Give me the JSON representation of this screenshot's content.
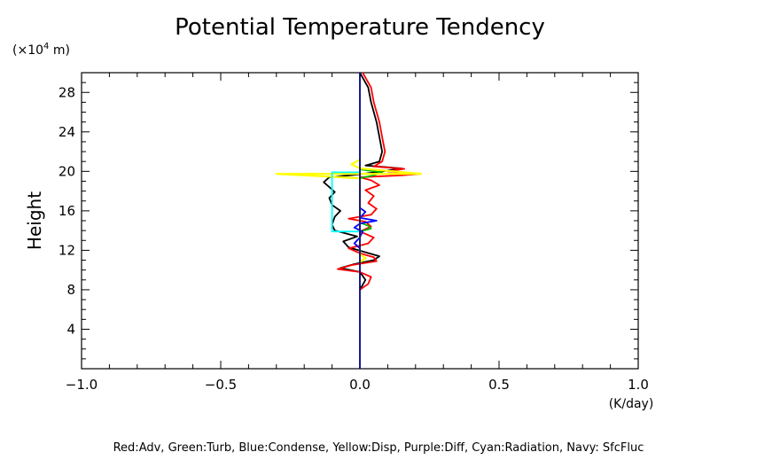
{
  "chart_data": {
    "type": "line",
    "title": "Potential Temperature Tendency",
    "xlabel": "(K/day)",
    "ylabel": "Height",
    "yunit_base": "(×10",
    "yunit_exp": "4",
    "yunit_rest": " m)",
    "xlim": [
      -1.0,
      1.0
    ],
    "ylim": [
      0,
      30
    ],
    "xticks": [
      -1.0,
      -0.5,
      0.0,
      0.5,
      1.0
    ],
    "xtick_labels": [
      "−1.0",
      "−0.5",
      "0.0",
      "0.5",
      "1.0"
    ],
    "yticks": [
      4,
      8,
      12,
      16,
      20,
      24,
      28
    ],
    "ytick_labels": [
      "4",
      "8",
      "12",
      "16",
      "20",
      "24",
      "28"
    ],
    "legend_text": "Red:Adv, Green:Turb, Blue:Condense, Yellow:Disp, Purple:Diff, Cyan:Radiation, Navy: SfcFluc",
    "legend_placement": "bottom",
    "grid": false,
    "series": [
      {
        "color": "#000000",
        "points": [
          [
            0.0,
            8.0
          ],
          [
            0.02,
            9.0
          ],
          [
            0.0,
            9.8
          ],
          [
            -0.07,
            10.2
          ],
          [
            -0.02,
            10.6
          ],
          [
            0.05,
            11.0
          ],
          [
            0.07,
            11.4
          ],
          [
            0.02,
            11.8
          ],
          [
            -0.04,
            12.3
          ],
          [
            -0.06,
            12.9
          ],
          [
            -0.01,
            13.4
          ],
          [
            -0.09,
            14.0
          ],
          [
            -0.1,
            14.6
          ],
          [
            -0.09,
            15.4
          ],
          [
            -0.07,
            16.0
          ],
          [
            -0.1,
            16.6
          ],
          [
            -0.11,
            17.3
          ],
          [
            -0.09,
            17.9
          ],
          [
            -0.11,
            18.4
          ],
          [
            -0.13,
            18.9
          ],
          [
            -0.11,
            19.4
          ],
          [
            0.0,
            19.7
          ],
          [
            0.08,
            20.0
          ],
          [
            0.15,
            20.3
          ],
          [
            0.02,
            20.6
          ],
          [
            0.07,
            21.0
          ],
          [
            0.08,
            22.0
          ],
          [
            0.07,
            23.5
          ],
          [
            0.06,
            25.0
          ],
          [
            0.04,
            27.0
          ],
          [
            0.03,
            28.5
          ],
          [
            0.01,
            29.5
          ],
          [
            0.0,
            30.0
          ]
        ]
      },
      {
        "color": "#ff0000",
        "points": [
          [
            0.0,
            8.0
          ],
          [
            0.03,
            8.6
          ],
          [
            0.04,
            9.3
          ],
          [
            0.0,
            9.8
          ],
          [
            -0.08,
            10.1
          ],
          [
            -0.03,
            10.5
          ],
          [
            0.06,
            10.9
          ],
          [
            0.05,
            11.3
          ],
          [
            0.0,
            11.7
          ],
          [
            -0.04,
            12.2
          ],
          [
            0.03,
            12.7
          ],
          [
            0.05,
            13.3
          ],
          [
            0.0,
            13.9
          ],
          [
            0.04,
            14.4
          ],
          [
            0.02,
            14.9
          ],
          [
            -0.04,
            15.2
          ],
          [
            0.04,
            15.6
          ],
          [
            0.06,
            16.2
          ],
          [
            0.03,
            16.8
          ],
          [
            0.05,
            17.5
          ],
          [
            0.02,
            18.1
          ],
          [
            0.07,
            18.6
          ],
          [
            0.04,
            19.1
          ],
          [
            0.0,
            19.4
          ],
          [
            0.15,
            19.6
          ],
          [
            0.22,
            19.75
          ],
          [
            0.1,
            20.0
          ],
          [
            0.16,
            20.25
          ],
          [
            0.05,
            20.5
          ],
          [
            0.08,
            21.0
          ],
          [
            0.09,
            22.0
          ],
          [
            0.08,
            23.5
          ],
          [
            0.07,
            25.0
          ],
          [
            0.05,
            27.0
          ],
          [
            0.04,
            28.5
          ],
          [
            0.02,
            29.5
          ],
          [
            0.01,
            30.0
          ]
        ]
      },
      {
        "color": "#00bb00",
        "points": [
          [
            0.0,
            13.9
          ],
          [
            0.04,
            14.2
          ],
          [
            0.03,
            14.5
          ],
          [
            0.0,
            14.8
          ],
          [
            0.0,
            19.3
          ],
          [
            0.05,
            19.6
          ],
          [
            0.08,
            19.9
          ],
          [
            0.0,
            20.2
          ]
        ]
      },
      {
        "color": "#0000ff",
        "points": [
          [
            0.0,
            12.2
          ],
          [
            -0.02,
            12.7
          ],
          [
            0.0,
            13.3
          ],
          [
            0.01,
            13.9
          ],
          [
            -0.02,
            14.3
          ],
          [
            0.0,
            14.7
          ],
          [
            0.06,
            15.0
          ],
          [
            0.0,
            15.3
          ],
          [
            0.02,
            15.9
          ],
          [
            0.0,
            16.3
          ]
        ]
      },
      {
        "color": "#ffff00",
        "points": [
          [
            0.0,
            10.8
          ],
          [
            0.02,
            11.2
          ],
          [
            0.0,
            11.6
          ],
          [
            0.0,
            19.3
          ],
          [
            -0.3,
            19.75
          ],
          [
            0.22,
            19.75
          ],
          [
            0.12,
            20.0
          ],
          [
            0.0,
            20.3
          ],
          [
            -0.03,
            20.7
          ],
          [
            0.0,
            21.2
          ]
        ]
      },
      {
        "color": "#00ffff",
        "points": [
          [
            0.0,
            13.9
          ],
          [
            -0.1,
            13.9
          ],
          [
            -0.1,
            19.9
          ],
          [
            0.0,
            19.9
          ]
        ]
      },
      {
        "color": "#000080",
        "points": [
          [
            0.0,
            0.0
          ],
          [
            0.0,
            30.0
          ]
        ]
      }
    ]
  }
}
